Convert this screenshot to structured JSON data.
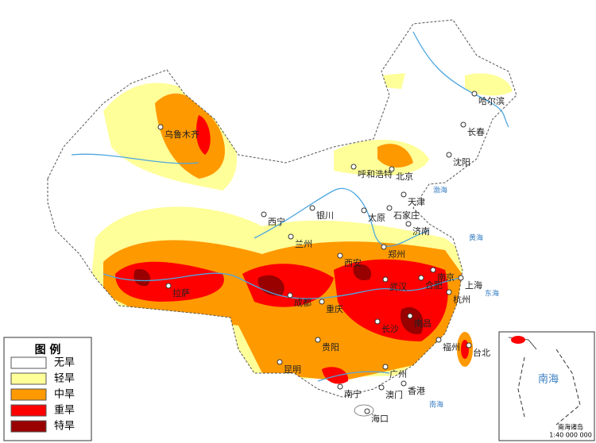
{
  "legend": {
    "title": "图 例",
    "items": [
      {
        "label": "无旱",
        "color": "#ffffff"
      },
      {
        "label": "轻旱",
        "color": "#ffff99"
      },
      {
        "label": "中旱",
        "color": "#ff9900"
      },
      {
        "label": "重旱",
        "color": "#ff0000"
      },
      {
        "label": "特旱",
        "color": "#990000"
      }
    ]
  },
  "cities": [
    "乌鲁木齐",
    "哈尔滨",
    "长春",
    "沈阳",
    "呼和浩特",
    "北京",
    "天津",
    "石家庄",
    "太原",
    "济南",
    "银川",
    "西宁",
    "兰州",
    "西安",
    "郑州",
    "合肥",
    "南京",
    "上海",
    "杭州",
    "武汉",
    "成都",
    "重庆",
    "拉萨",
    "长沙",
    "南昌",
    "福州",
    "台北",
    "贵阳",
    "昆明",
    "南宁",
    "广州",
    "香港",
    "澳门",
    "海口"
  ],
  "seas": [
    "渤海",
    "黄海",
    "东海",
    "南海"
  ],
  "inset": {
    "title": "南海诸岛",
    "sea": "南海",
    "scale": "1:40 000 000"
  }
}
